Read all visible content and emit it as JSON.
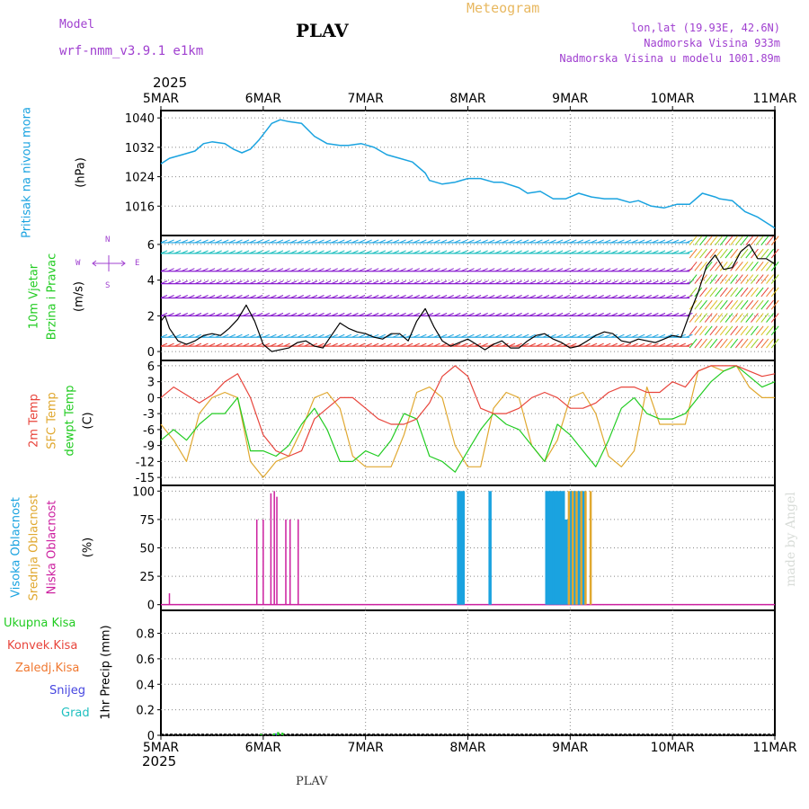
{
  "header": {
    "model_label": "Model",
    "model_name": "wrf-nmm_v3.9.1  e1km",
    "station": "PLAV",
    "product": "Meteogram",
    "lonlat": "lon,lat (19.93E, 42.6N)",
    "elevation": "Nadmorska Visina 933m",
    "model_elevation": "Nadmorska Visina u modelu 1001.89m",
    "footer_station": "PLAV",
    "watermark": "made by Angel",
    "year_top": "2025",
    "year_bottom": "2025"
  },
  "colors": {
    "pressure": "#1aa3e0",
    "wind_speed": "#000000",
    "t2m": "#e8453c",
    "tsfc": "#e0a830",
    "dewpoint": "#22cc22",
    "cloud_high": "#1aa3e0",
    "cloud_mid": "#e0a830",
    "cloud_low": "#cc1f9f",
    "precip_total": "#22cc22",
    "precip_conv": "#e8453c",
    "precip_frz": "#f07830",
    "precip_snow": "#4646e0",
    "precip_grad": "#20c0c0",
    "header_purple": "#a040d0",
    "header_orange": "#e8b860"
  },
  "panels": {
    "pressure": {
      "label": "Pritisak na nivou mora",
      "unit": "(hPa)"
    },
    "wind": {
      "label1": "10m Vjetar",
      "label2": "Brzina i Pravac",
      "unit": "(m/s)",
      "compass": {
        "w": "W",
        "e": "E",
        "n": "N",
        "s": "S"
      }
    },
    "temp": {
      "label1": "2m Temp",
      "label2": "SFC Temp",
      "label3": "dewpt Temp",
      "unit": "(C)"
    },
    "cloud": {
      "label1": "Visoka Oblacnost",
      "label2": "Srednja Oblacnost",
      "label3": "Niska Oblacnost",
      "unit": "(%)"
    },
    "precip": {
      "label1": "Ukupna Kisa",
      "label2": "Konvek.Kisa",
      "label3": "Zaledj.Kisa",
      "label4": "Snijeg",
      "label5": "Grad",
      "unit": "1hr Precip (mm)"
    }
  },
  "chart_data": {
    "type": "line",
    "x_axis": {
      "labels": [
        "5MAR",
        "6MAR",
        "7MAR",
        "8MAR",
        "9MAR",
        "10MAR",
        "11MAR"
      ],
      "range_hours": [
        0,
        144
      ]
    },
    "pressure": {
      "ylim": [
        1008,
        1042
      ],
      "ticks": [
        "1016",
        "1024",
        "1032",
        "1040"
      ],
      "tick_values": [
        1016,
        1024,
        1032,
        1040
      ],
      "x": [
        0,
        2,
        5,
        8,
        10,
        12,
        15,
        17,
        19,
        21,
        23,
        25,
        26,
        28,
        30,
        33,
        36,
        39,
        42,
        44,
        47,
        50,
        53,
        56,
        59,
        62,
        63,
        66,
        69,
        72,
        75,
        78,
        80,
        84,
        86,
        89,
        92,
        95,
        98,
        101,
        104,
        107,
        110,
        112,
        115,
        118,
        121,
        124,
        127,
        130,
        131,
        134,
        137,
        140,
        144
      ],
      "values": [
        1027.5,
        1029,
        1030,
        1031,
        1033,
        1033.5,
        1033,
        1031.5,
        1030.5,
        1031.5,
        1034,
        1037,
        1038.5,
        1039.5,
        1039,
        1038.5,
        1035,
        1033,
        1032.5,
        1032.5,
        1033,
        1032,
        1030,
        1029,
        1028,
        1025,
        1023,
        1022,
        1022.5,
        1023.5,
        1023.5,
        1022.5,
        1022.5,
        1021,
        1019.5,
        1020,
        1018,
        1018,
        1019.5,
        1018.5,
        1018,
        1018,
        1017,
        1017.5,
        1016,
        1015.5,
        1016.5,
        1016.5,
        1019.5,
        1018.5,
        1018,
        1017.5,
        1014.5,
        1013,
        1010
      ]
    },
    "wind": {
      "ylim": [
        -0.5,
        6.5
      ],
      "ticks": [
        "0",
        "2",
        "4",
        "6"
      ],
      "tick_values": [
        0,
        2,
        4,
        6
      ],
      "speed_x": [
        0,
        1,
        2,
        4,
        6,
        8,
        10,
        12,
        14,
        16,
        18,
        20,
        22,
        24,
        26,
        28,
        30,
        32,
        34,
        36,
        38,
        40,
        42,
        44,
        46,
        48,
        50,
        52,
        54,
        56,
        58,
        60,
        62,
        64,
        66,
        68,
        70,
        72,
        74,
        76,
        78,
        80,
        82,
        84,
        86,
        88,
        90,
        92,
        94,
        96,
        98,
        100,
        102,
        104,
        106,
        108,
        110,
        112,
        114,
        116,
        118,
        120,
        122,
        124,
        126,
        128,
        130,
        132,
        134,
        136,
        138,
        140,
        142,
        144
      ],
      "speed": [
        1.7,
        2.0,
        1.3,
        0.6,
        0.4,
        0.6,
        0.9,
        1.0,
        0.9,
        1.3,
        1.8,
        2.6,
        1.7,
        0.4,
        0.0,
        0.1,
        0.2,
        0.5,
        0.6,
        0.3,
        0.2,
        0.9,
        1.6,
        1.3,
        1.1,
        1.0,
        0.8,
        0.7,
        1.0,
        1.0,
        0.6,
        1.7,
        2.4,
        1.4,
        0.6,
        0.3,
        0.5,
        0.7,
        0.4,
        0.1,
        0.4,
        0.6,
        0.2,
        0.2,
        0.6,
        0.9,
        1.0,
        0.7,
        0.5,
        0.2,
        0.3,
        0.6,
        0.9,
        1.1,
        1.0,
        0.6,
        0.5,
        0.7,
        0.6,
        0.5,
        0.7,
        0.9,
        0.8,
        2.1,
        3.3,
        4.8,
        5.4,
        4.6,
        4.7,
        5.6,
        6.0,
        5.2,
        5.2,
        4.9
      ],
      "barb_rows": [
        0.3,
        0.8,
        2.0,
        3.0,
        3.8,
        4.5,
        5.5,
        6.1
      ]
    },
    "temperature": {
      "ylim": [
        -16.5,
        7
      ],
      "ticks": [
        "6",
        "3",
        "0",
        "-3",
        "-6",
        "-9",
        "-12",
        "-15"
      ],
      "tick_values": [
        6,
        3,
        0,
        -3,
        -6,
        -9,
        -12,
        -15
      ],
      "x": [
        0,
        3,
        6,
        9,
        12,
        15,
        18,
        21,
        24,
        27,
        30,
        33,
        36,
        39,
        42,
        45,
        48,
        51,
        54,
        57,
        60,
        63,
        66,
        69,
        72,
        75,
        78,
        81,
        84,
        87,
        90,
        93,
        96,
        99,
        102,
        105,
        108,
        111,
        114,
        117,
        120,
        123,
        126,
        129,
        132,
        135,
        138,
        141,
        144
      ],
      "t2m": [
        0,
        2,
        0.5,
        -1,
        0.5,
        3,
        4.5,
        0,
        -7,
        -10,
        -11,
        -10,
        -4,
        -2,
        0,
        0,
        -2,
        -4,
        -5,
        -5,
        -4,
        -1,
        4,
        6,
        4,
        -2,
        -3,
        -3,
        -2,
        0,
        1,
        0,
        -2,
        -2,
        -1,
        1,
        2,
        2,
        1,
        1,
        3,
        2,
        5,
        6,
        6,
        6,
        5,
        4,
        4.5
      ],
      "tsfc": [
        -5,
        -8,
        -12,
        -3,
        0,
        1,
        0,
        -12,
        -15,
        -12,
        -11,
        -6,
        0,
        1,
        -2,
        -11,
        -13,
        -13,
        -13,
        -7,
        1,
        2,
        0,
        -9,
        -13,
        -13,
        -2,
        1,
        0,
        -9,
        -12,
        -8,
        0,
        1,
        -3,
        -11,
        -13,
        -10,
        2,
        -5,
        -5,
        -5,
        5,
        6,
        5,
        6,
        2,
        0,
        0
      ],
      "dewpt": [
        -8,
        -6,
        -8,
        -5,
        -3,
        -3,
        0,
        -10,
        -10,
        -11,
        -9,
        -5,
        -2,
        -6,
        -12,
        -12,
        -10,
        -11,
        -8,
        -3,
        -4,
        -11,
        -12,
        -14,
        -10,
        -6,
        -3,
        -5,
        -6,
        -9,
        -12,
        -5,
        -7,
        -10,
        -13,
        -8,
        -2,
        0,
        -3,
        -4,
        -4,
        -3,
        0,
        3,
        5,
        6,
        4,
        2,
        3
      ]
    },
    "cloud": {
      "ylim": [
        -5,
        105
      ],
      "ticks": [
        "0",
        "25",
        "50",
        "75",
        "100"
      ],
      "tick_values": [
        0,
        25,
        50,
        75,
        100
      ],
      "low": [
        {
          "x": 2,
          "v": 10
        },
        {
          "x": 22.5,
          "v": 75
        },
        {
          "x": 24,
          "v": 75
        },
        {
          "x": 25.8,
          "v": 98
        },
        {
          "x": 26.6,
          "v": 100
        },
        {
          "x": 27.2,
          "v": 95
        },
        {
          "x": 29.3,
          "v": 75
        },
        {
          "x": 30.3,
          "v": 75
        },
        {
          "x": 32.2,
          "v": 75
        }
      ],
      "high": [
        {
          "x": 69.8,
          "v": 100
        },
        {
          "x": 70.3,
          "v": 100
        },
        {
          "x": 70.9,
          "v": 100
        },
        {
          "x": 77.2,
          "v": 100
        },
        {
          "x": 90.5,
          "v": 100
        },
        {
          "x": 91,
          "v": 100
        },
        {
          "x": 91.6,
          "v": 100
        },
        {
          "x": 92.2,
          "v": 100
        },
        {
          "x": 92.7,
          "v": 100
        },
        {
          "x": 93.3,
          "v": 100
        },
        {
          "x": 93.8,
          "v": 100
        },
        {
          "x": 94.4,
          "v": 100
        },
        {
          "x": 95.1,
          "v": 75
        },
        {
          "x": 96.3,
          "v": 100
        },
        {
          "x": 97,
          "v": 100
        },
        {
          "x": 98.1,
          "v": 100
        },
        {
          "x": 99.1,
          "v": 100
        }
      ],
      "mid": [
        {
          "x": 95.7,
          "v": 100
        },
        {
          "x": 96.6,
          "v": 100
        },
        {
          "x": 97.5,
          "v": 100
        },
        {
          "x": 98.6,
          "v": 100
        },
        {
          "x": 99.6,
          "v": 100
        },
        {
          "x": 100.8,
          "v": 100
        }
      ]
    },
    "precip": {
      "ylim": [
        0,
        0.98
      ],
      "ticks": [
        "0",
        "0.2",
        "0.4",
        "0.6",
        "0.8"
      ],
      "tick_values": [
        0,
        0.2,
        0.4,
        0.6,
        0.8
      ],
      "total": [
        {
          "x": 23.5,
          "v": 0.01
        },
        {
          "x": 26.5,
          "v": 0.015
        },
        {
          "x": 27.5,
          "v": 0.025
        },
        {
          "x": 28.5,
          "v": 0.02
        }
      ],
      "snow": [
        {
          "x": 27,
          "v": 0.015
        }
      ]
    }
  }
}
